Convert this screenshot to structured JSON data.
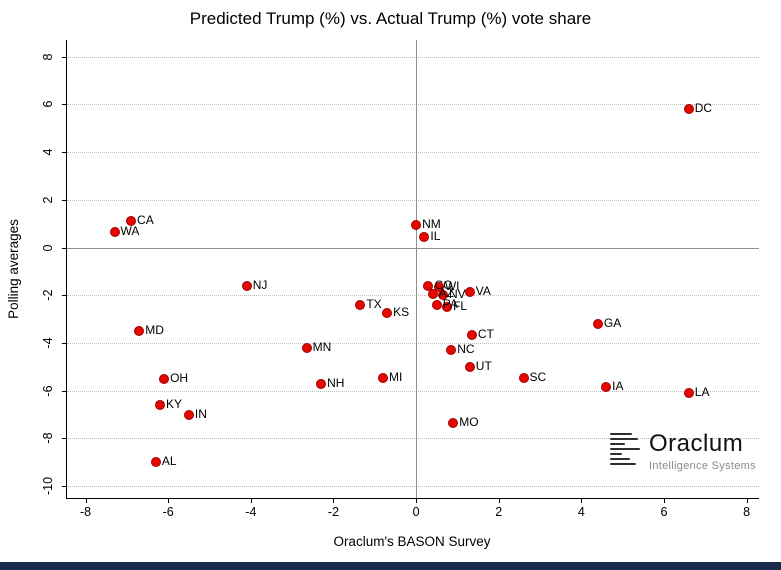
{
  "chart_data": {
    "type": "scatter",
    "title": "Predicted Trump (%) vs. Actual Trump (%) vote share",
    "xlabel": "Oraclum's BASON Survey",
    "ylabel": "Polling averages",
    "xlim": [
      -8.45,
      8.3
    ],
    "ylim": [
      -10.5,
      8.7
    ],
    "xticks": [
      -8,
      -6,
      -4,
      -2,
      0,
      2,
      4,
      6,
      8
    ],
    "yticks": [
      8,
      6,
      4,
      2,
      0,
      -2,
      -4,
      -6,
      -8,
      -10
    ],
    "grid": "horizontal-dotted",
    "legend": "none",
    "marker_color": "#e60800",
    "points": [
      {
        "label": "WA",
        "x": -7.3,
        "y": 0.65
      },
      {
        "label": "CA",
        "x": -6.9,
        "y": 1.1
      },
      {
        "label": "MD",
        "x": -6.7,
        "y": -3.5
      },
      {
        "label": "OH",
        "x": -6.1,
        "y": -5.5
      },
      {
        "label": "KY",
        "x": -6.2,
        "y": -6.6
      },
      {
        "label": "AL",
        "x": -6.3,
        "y": -9.0
      },
      {
        "label": "IN",
        "x": -5.5,
        "y": -7.0
      },
      {
        "label": "NJ",
        "x": -4.1,
        "y": -1.6
      },
      {
        "label": "MN",
        "x": -2.65,
        "y": -4.2
      },
      {
        "label": "NH",
        "x": -2.3,
        "y": -5.7
      },
      {
        "label": "TX",
        "x": -1.35,
        "y": -2.4
      },
      {
        "label": "MI",
        "x": -0.8,
        "y": -5.45
      },
      {
        "label": "KS",
        "x": -0.7,
        "y": -2.75
      },
      {
        "label": "NM",
        "x": 0.0,
        "y": 0.95
      },
      {
        "label": "IL",
        "x": 0.2,
        "y": 0.45
      },
      {
        "label": "CO",
        "x": 0.3,
        "y": -1.6
      },
      {
        "label": "WI",
        "x": 0.55,
        "y": -1.65
      },
      {
        "label": "AZ",
        "x": 0.4,
        "y": -1.95
      },
      {
        "label": "NV",
        "x": 0.65,
        "y": -2.0
      },
      {
        "label": "PA",
        "x": 0.5,
        "y": -2.4
      },
      {
        "label": "FL",
        "x": 0.75,
        "y": -2.5
      },
      {
        "label": "VA",
        "x": 1.3,
        "y": -1.85
      },
      {
        "label": "CT",
        "x": 1.35,
        "y": -3.65
      },
      {
        "label": "NC",
        "x": 0.85,
        "y": -4.3
      },
      {
        "label": "UT",
        "x": 1.3,
        "y": -5.0
      },
      {
        "label": "MO",
        "x": 0.9,
        "y": -7.35
      },
      {
        "label": "SC",
        "x": 2.6,
        "y": -5.45
      },
      {
        "label": "GA",
        "x": 4.4,
        "y": -3.2
      },
      {
        "label": "IA",
        "x": 4.6,
        "y": -5.85
      },
      {
        "label": "LA",
        "x": 6.6,
        "y": -6.1
      },
      {
        "label": "DC",
        "x": 6.6,
        "y": 5.8
      }
    ]
  },
  "logo": {
    "name": "Oraclum",
    "subtitle": "Intelligence Systems"
  },
  "page": {
    "bottom_bar_color": "#1b2a4c"
  }
}
